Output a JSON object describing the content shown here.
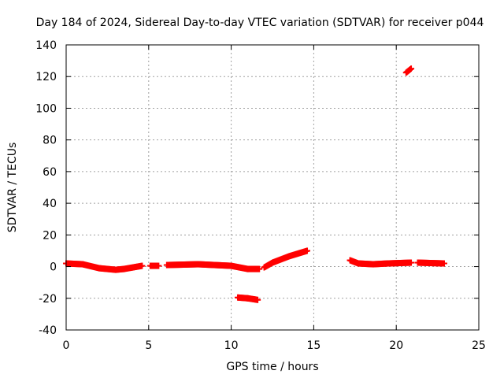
{
  "chart_data": {
    "type": "scatter",
    "title": "Day 184 of 2024, Sidereal Day-to-day VTEC variation (SDTVAR) for receiver p044",
    "xlabel": "GPS time / hours",
    "ylabel": "SDTVAR / TECUs",
    "xlim": [
      0,
      25
    ],
    "ylim": [
      -40,
      140
    ],
    "x_ticks": [
      0,
      5,
      10,
      15,
      20,
      25
    ],
    "y_ticks": [
      -40,
      -20,
      0,
      20,
      40,
      60,
      80,
      100,
      120,
      140
    ],
    "grid": true,
    "marker": "+",
    "color": "#ff0000",
    "series": [
      {
        "name": "SDTVAR",
        "segments": [
          {
            "t_start": 0.0,
            "t_end": 1.0,
            "v_start": 2.0,
            "v_end": 1.5
          },
          {
            "t_start": 1.0,
            "t_end": 2.0,
            "v_start": 1.5,
            "v_end": -1.0
          },
          {
            "t_start": 2.0,
            "t_end": 3.0,
            "v_start": -1.0,
            "v_end": -2.0
          },
          {
            "t_start": 3.0,
            "t_end": 3.5,
            "v_start": -2.0,
            "v_end": -1.5
          },
          {
            "t_start": 3.5,
            "t_end": 4.6,
            "v_start": -1.5,
            "v_end": 0.5
          },
          {
            "t_start": 5.1,
            "t_end": 5.6,
            "v_start": 0.5,
            "v_end": 0.5
          },
          {
            "t_start": 6.1,
            "t_end": 8.0,
            "v_start": 1.0,
            "v_end": 1.5
          },
          {
            "t_start": 8.0,
            "t_end": 10.0,
            "v_start": 1.5,
            "v_end": 0.5
          },
          {
            "t_start": 10.0,
            "t_end": 11.0,
            "v_start": 0.5,
            "v_end": -1.5
          },
          {
            "t_start": 11.0,
            "t_end": 11.7,
            "v_start": -1.5,
            "v_end": -1.5
          },
          {
            "t_start": 12.0,
            "t_end": 12.5,
            "v_start": -0.5,
            "v_end": 2.5
          },
          {
            "t_start": 12.5,
            "t_end": 13.5,
            "v_start": 2.5,
            "v_end": 6.5
          },
          {
            "t_start": 13.5,
            "t_end": 14.6,
            "v_start": 6.5,
            "v_end": 10.0
          },
          {
            "t_start": 10.4,
            "t_end": 11.0,
            "v_start": -19.5,
            "v_end": -20.0
          },
          {
            "t_start": 11.0,
            "t_end": 11.6,
            "v_start": -20.0,
            "v_end": -21.0
          },
          {
            "t_start": 17.2,
            "t_end": 17.7,
            "v_start": 4.0,
            "v_end": 2.0
          },
          {
            "t_start": 17.7,
            "t_end": 18.6,
            "v_start": 2.0,
            "v_end": 1.5
          },
          {
            "t_start": 18.6,
            "t_end": 19.5,
            "v_start": 1.5,
            "v_end": 2.0
          },
          {
            "t_start": 19.5,
            "t_end": 20.9,
            "v_start": 2.0,
            "v_end": 2.5
          },
          {
            "t_start": 21.3,
            "t_end": 22.9,
            "v_start": 2.5,
            "v_end": 2.0
          },
          {
            "t_start": 20.6,
            "t_end": 20.9,
            "v_start": 122.5,
            "v_end": 125.0
          }
        ]
      }
    ]
  }
}
